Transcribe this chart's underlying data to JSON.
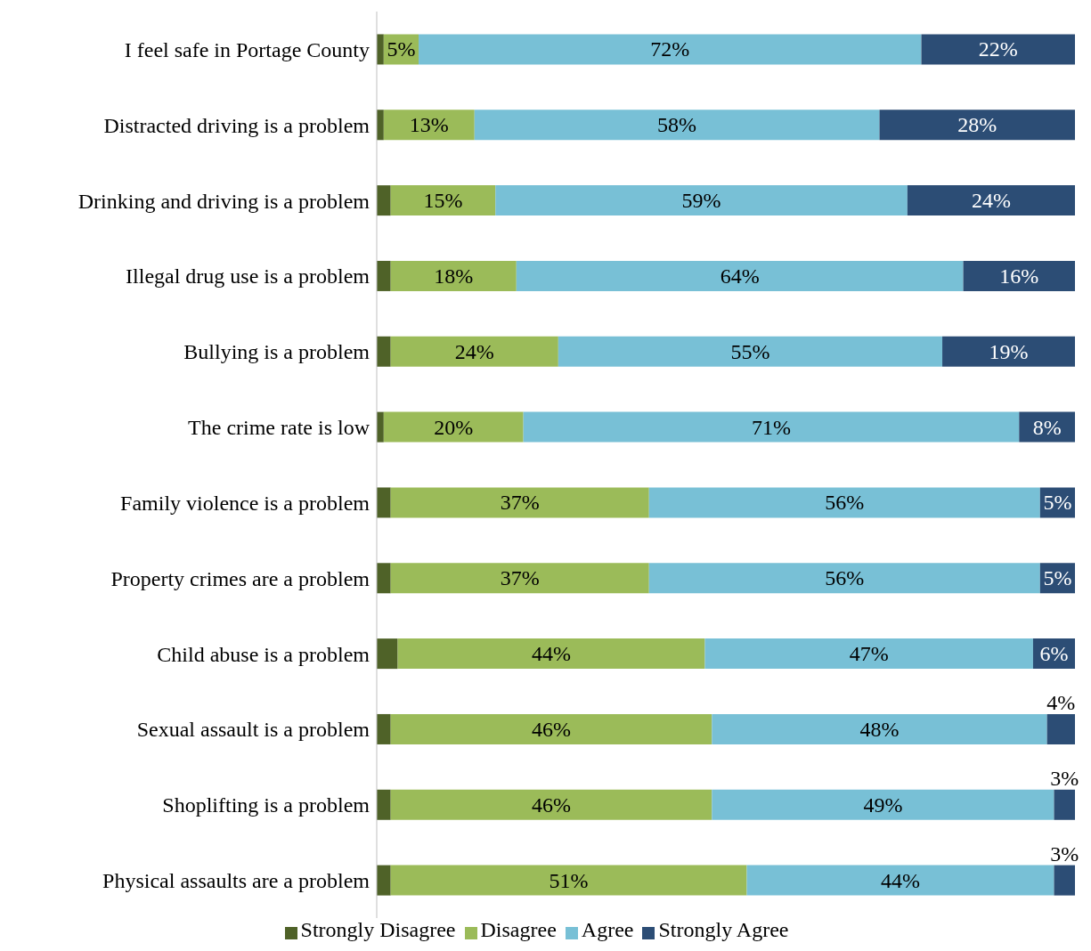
{
  "chart_data": {
    "type": "bar",
    "orientation": "horizontal",
    "stacked": true,
    "categories": [
      "I feel safe in Portage County",
      "Distracted driving is a problem",
      "Drinking and driving is a problem",
      "Illegal drug use is a problem",
      "Bullying is a problem",
      "The crime rate is low",
      "Family violence is a problem",
      "Property crimes are a problem",
      "Child abuse is a problem",
      "Sexual assault is a problem",
      "Shoplifting is a problem",
      "Physical assaults are a problem"
    ],
    "series": [
      {
        "name": "Strongly Disagree",
        "color": "#4f6228",
        "values": [
          1,
          1,
          2,
          2,
          2,
          1,
          2,
          2,
          3,
          2,
          2,
          2
        ],
        "value_labels": [
          null,
          null,
          null,
          null,
          null,
          null,
          null,
          null,
          null,
          null,
          null,
          null
        ]
      },
      {
        "name": "Disagree",
        "color": "#9bbb59",
        "values": [
          5,
          13,
          15,
          18,
          24,
          20,
          37,
          37,
          44,
          46,
          46,
          51
        ],
        "value_labels": [
          "5%",
          "13%",
          "15%",
          "18%",
          "24%",
          "20%",
          "37%",
          "37%",
          "44%",
          "46%",
          "46%",
          "51%"
        ]
      },
      {
        "name": "Agree",
        "color": "#78c0d6",
        "values": [
          72,
          58,
          59,
          64,
          55,
          71,
          56,
          56,
          47,
          48,
          49,
          44
        ],
        "value_labels": [
          "72%",
          "58%",
          "59%",
          "64%",
          "55%",
          "71%",
          "56%",
          "56%",
          "47%",
          "48%",
          "49%",
          "44%"
        ]
      },
      {
        "name": "Strongly Agree",
        "color": "#2c4d75",
        "values": [
          22,
          28,
          24,
          16,
          19,
          8,
          5,
          5,
          6,
          4,
          3,
          3
        ],
        "value_labels": [
          "22%",
          "28%",
          "24%",
          "16%",
          "19%",
          "8%",
          "5%",
          "5%",
          "6%",
          "4%",
          "3%",
          "3%"
        ]
      }
    ],
    "xlim": [
      0,
      100
    ],
    "tick_labels": "y",
    "legend": "bottom"
  }
}
